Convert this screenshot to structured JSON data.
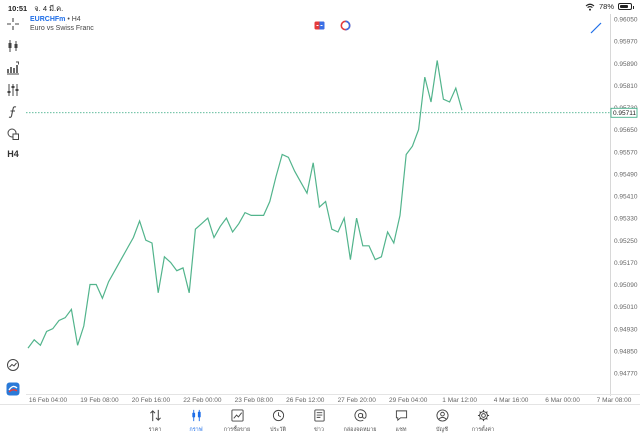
{
  "status_bar": {
    "time": "10:51",
    "date": "จ. 4 มี.ค.",
    "battery": "78%",
    "battery_level": 0.78
  },
  "chart_header": {
    "symbol": "EURCHFm",
    "separator": "•",
    "period": "H4",
    "description": "Euro vs Swiss Franc"
  },
  "toolbar": {
    "period_label": "H4",
    "icons": [
      "crosshair-icon",
      "candlestick-icon",
      "indicators-icon",
      "settings-sliders-icon",
      "function-icon",
      "objects-icon",
      "timeframe-icon",
      "trade-levels-icon",
      "mt-logo-icon"
    ]
  },
  "colors": {
    "line": "#52b48c",
    "price_line": "#2aa57a",
    "accent": "#1e6ee8",
    "axis_text": "#666666"
  },
  "chart_data": {
    "type": "line",
    "y_ticks": [
      "0.96050",
      "0.95970",
      "0.95890",
      "0.95810",
      "0.95730",
      "0.95650",
      "0.95570",
      "0.95490",
      "0.95410",
      "0.95330",
      "0.95250",
      "0.95170",
      "0.95090",
      "0.95010",
      "0.94930",
      "0.94850",
      "0.94770"
    ],
    "ylim": [
      0.9477,
      0.9605
    ],
    "x_ticks": [
      "16 Feb 04:00",
      "19 Feb 08:00",
      "20 Feb 16:00",
      "22 Feb 00:00",
      "23 Feb 08:00",
      "26 Feb 12:00",
      "27 Feb 20:00",
      "29 Feb 04:00",
      "1 Mar 12:00",
      "4 Mar 16:00",
      "6 Mar 00:00",
      "7 Mar 08:00"
    ],
    "current_price": 0.95711,
    "current_price_label": "0.95711",
    "series": [
      {
        "values": [
          0.9486,
          0.9489,
          0.9487,
          0.9492,
          0.9493,
          0.9496,
          0.9497,
          0.95,
          0.9487,
          0.9494,
          0.9509,
          0.9509,
          0.9504,
          0.951,
          0.9514,
          0.9518,
          0.9522,
          0.9526,
          0.9532,
          0.9525,
          0.9524,
          0.9506,
          0.9519,
          0.9517,
          0.9514,
          0.9515,
          0.9506,
          0.9529,
          0.9531,
          0.9533,
          0.9526,
          0.953,
          0.9533,
          0.9528,
          0.9531,
          0.9535,
          0.9534,
          0.9534,
          0.9534,
          0.9539,
          0.9548,
          0.9556,
          0.9555,
          0.955,
          0.9546,
          0.9542,
          0.9553,
          0.9537,
          0.9539,
          0.9529,
          0.9528,
          0.9533,
          0.9518,
          0.9533,
          0.9523,
          0.9523,
          0.9518,
          0.9519,
          0.9528,
          0.9524,
          0.9534,
          0.9556,
          0.9559,
          0.9565,
          0.9584,
          0.9575,
          0.959,
          0.9576,
          0.9575,
          0.958,
          0.9572
        ]
      }
    ]
  },
  "tabbar": {
    "tabs": [
      {
        "label": "ราคา",
        "icon": "quotes-icon",
        "active": false
      },
      {
        "label": "กราฟ",
        "icon": "chart-icon",
        "active": true
      },
      {
        "label": "การซื้อขาย",
        "icon": "trade-icon",
        "active": false
      },
      {
        "label": "ประวัติ",
        "icon": "history-icon",
        "active": false
      },
      {
        "label": "ข่าว",
        "icon": "news-icon",
        "active": false
      },
      {
        "label": "กล่องจดหมาย",
        "icon": "mailbox-icon",
        "active": false
      },
      {
        "label": "แชท",
        "icon": "chat-icon",
        "active": false
      },
      {
        "label": "บัญชี",
        "icon": "account-icon",
        "active": false
      },
      {
        "label": "การตั้งค่า",
        "icon": "settings-icon",
        "active": false
      }
    ]
  }
}
